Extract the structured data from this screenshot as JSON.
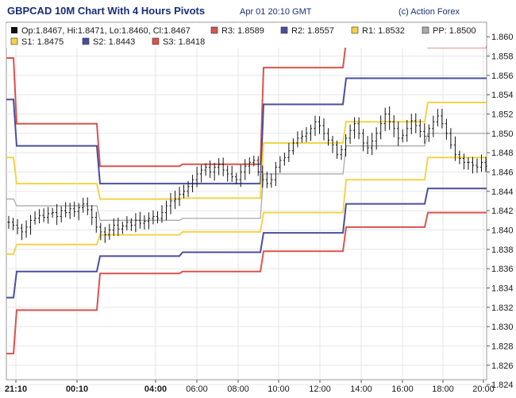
{
  "header": {
    "title": "GBPCAD 10M Chart With 4 Hours Pivots",
    "timestamp": "Apr 01 20:10 GMT",
    "credit": "(c) Action Forex"
  },
  "chart_data": {
    "type": "line",
    "ohlc_label": "Op:1.8467, Hi:1.8471, Lo:1.8460, Cl:1.8467",
    "ylim": [
      1.8245,
      1.8615
    ],
    "y_ticks": [
      "1.860",
      "1.858",
      "1.856",
      "1.854",
      "1.852",
      "1.850",
      "1.848",
      "1.846",
      "1.844",
      "1.842",
      "1.840",
      "1.838",
      "1.836",
      "1.834",
      "1.832",
      "1.830",
      "1.828",
      "1.826",
      "1.824"
    ],
    "x_ticks": [
      {
        "label": "21:10",
        "bold": true
      },
      {
        "label": "00:10",
        "bold": true
      },
      {
        "label": "04:00",
        "bold": true
      },
      {
        "label": "06:00",
        "bold": false
      },
      {
        "label": "08:00",
        "bold": false
      },
      {
        "label": "10:00",
        "bold": false
      },
      {
        "label": "12:00",
        "bold": false
      },
      {
        "label": "14:00",
        "bold": false
      },
      {
        "label": "16:00",
        "bold": false
      },
      {
        "label": "18:00",
        "bold": false
      },
      {
        "label": "20:00",
        "bold": false
      }
    ],
    "grid": true,
    "series": [
      {
        "name": "R3",
        "value_label": "1.8589",
        "color": "#d9534f",
        "levels": [
          1.8578,
          1.851,
          1.8466,
          1.8468,
          1.8568,
          1.8595,
          1.8589
        ]
      },
      {
        "name": "R2",
        "value_label": "1.8557",
        "color": "#4a4f9c",
        "levels": [
          1.8535,
          1.8487,
          1.8448,
          1.8448,
          1.853,
          1.8557,
          1.8557
        ]
      },
      {
        "name": "R1",
        "value_label": "1.8532",
        "color": "#f2d34a",
        "levels": [
          1.8475,
          1.8448,
          1.8432,
          1.8433,
          1.849,
          1.8512,
          1.8532
        ]
      },
      {
        "name": "PP",
        "value_label": "1.8500",
        "color": "#aaaaaa",
        "levels": [
          1.8432,
          1.8425,
          1.841,
          1.8412,
          1.8458,
          1.8487,
          1.85
        ]
      },
      {
        "name": "S1",
        "value_label": "1.8475",
        "color": "#f2d34a",
        "levels": [
          1.8375,
          1.8385,
          1.8395,
          1.8398,
          1.8418,
          1.8452,
          1.8475
        ]
      },
      {
        "name": "S2",
        "value_label": "1.8443",
        "color": "#4a4f9c",
        "levels": [
          1.833,
          1.8357,
          1.8373,
          1.8377,
          1.8397,
          1.8427,
          1.8443
        ]
      },
      {
        "name": "S3",
        "value_label": "1.8418",
        "color": "#d9534f",
        "levels": [
          1.8272,
          1.8317,
          1.8355,
          1.8357,
          1.8378,
          1.8403,
          1.8418
        ]
      }
    ],
    "price": [
      1.8408,
      1.8405,
      1.8402,
      1.8398,
      1.8403,
      1.841,
      1.8412,
      1.8415,
      1.8413,
      1.8417,
      1.8418,
      1.8414,
      1.842,
      1.8418,
      1.8422,
      1.8419,
      1.8423,
      1.8427,
      1.8421,
      1.8413,
      1.8403,
      1.8398,
      1.8395,
      1.84,
      1.8405,
      1.8401,
      1.8404,
      1.8408,
      1.8405,
      1.841,
      1.8407,
      1.8409,
      1.8412,
      1.8414,
      1.8412,
      1.8418,
      1.8425,
      1.843,
      1.8432,
      1.8437,
      1.844,
      1.8445,
      1.8452,
      1.8458,
      1.8462,
      1.8465,
      1.846,
      1.8465,
      1.8468,
      1.8462,
      1.8458,
      1.8455,
      1.8452,
      1.846,
      1.8466,
      1.847,
      1.8472,
      1.846,
      1.8452,
      1.8448,
      1.8452,
      1.8465,
      1.8472,
      1.8475,
      1.8482,
      1.849,
      1.8495,
      1.8497,
      1.85,
      1.8505,
      1.8512,
      1.8508,
      1.85,
      1.8493,
      1.8488,
      1.8478,
      1.8483,
      1.8495,
      1.8503,
      1.851,
      1.85,
      1.849,
      1.8485,
      1.8492,
      1.85,
      1.851,
      1.852,
      1.8512,
      1.8505,
      1.8495,
      1.8498,
      1.8505,
      1.8513,
      1.8508,
      1.8502,
      1.8497,
      1.8505,
      1.8512,
      1.8518,
      1.851,
      1.85,
      1.8488,
      1.8478,
      1.8474,
      1.847,
      1.847,
      1.8467,
      1.8465,
      1.847,
      1.8466
    ]
  }
}
